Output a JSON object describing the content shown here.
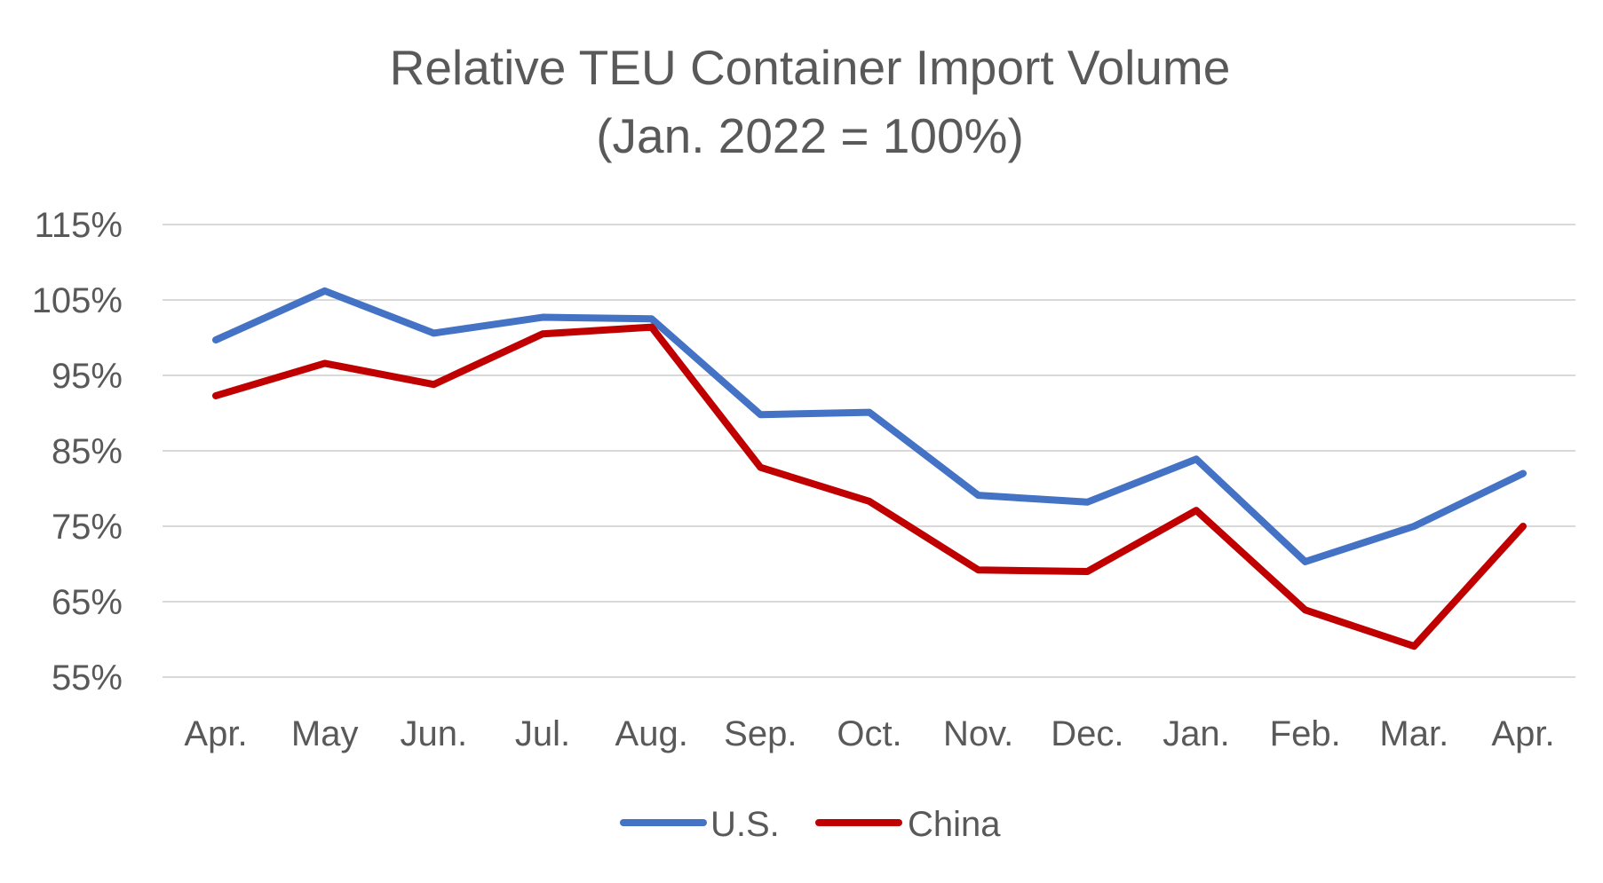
{
  "chart_data": {
    "type": "line",
    "title": "Relative TEU Container Import  Volume",
    "subtitle": "(Jan. 2022 = 100%)",
    "xlabel": "",
    "ylabel": "",
    "categories": [
      "Apr.",
      "May",
      "Jun.",
      "Jul.",
      "Aug.",
      "Sep.",
      "Oct.",
      "Nov.",
      "Dec.",
      "Jan.",
      "Feb.",
      "Mar.",
      "Apr."
    ],
    "yticks": [
      115,
      105,
      95,
      85,
      75,
      65,
      55
    ],
    "ytick_labels": [
      "115%",
      "105%",
      "95%",
      "85%",
      "75%",
      "65%",
      "55%"
    ],
    "ylim": [
      55,
      115
    ],
    "grid": true,
    "legend_position": "bottom",
    "series": [
      {
        "name": "U.S.",
        "color": "#4472C4",
        "values": [
          99.7,
          106.2,
          100.6,
          102.7,
          102.5,
          89.8,
          90.1,
          79.1,
          78.2,
          83.9,
          70.3,
          75.0,
          82.0
        ]
      },
      {
        "name": "China",
        "color": "#C00000",
        "values": [
          92.3,
          96.6,
          93.8,
          100.5,
          101.4,
          82.8,
          78.3,
          69.2,
          69.0,
          77.1,
          63.9,
          59.1,
          75.0
        ]
      }
    ]
  }
}
